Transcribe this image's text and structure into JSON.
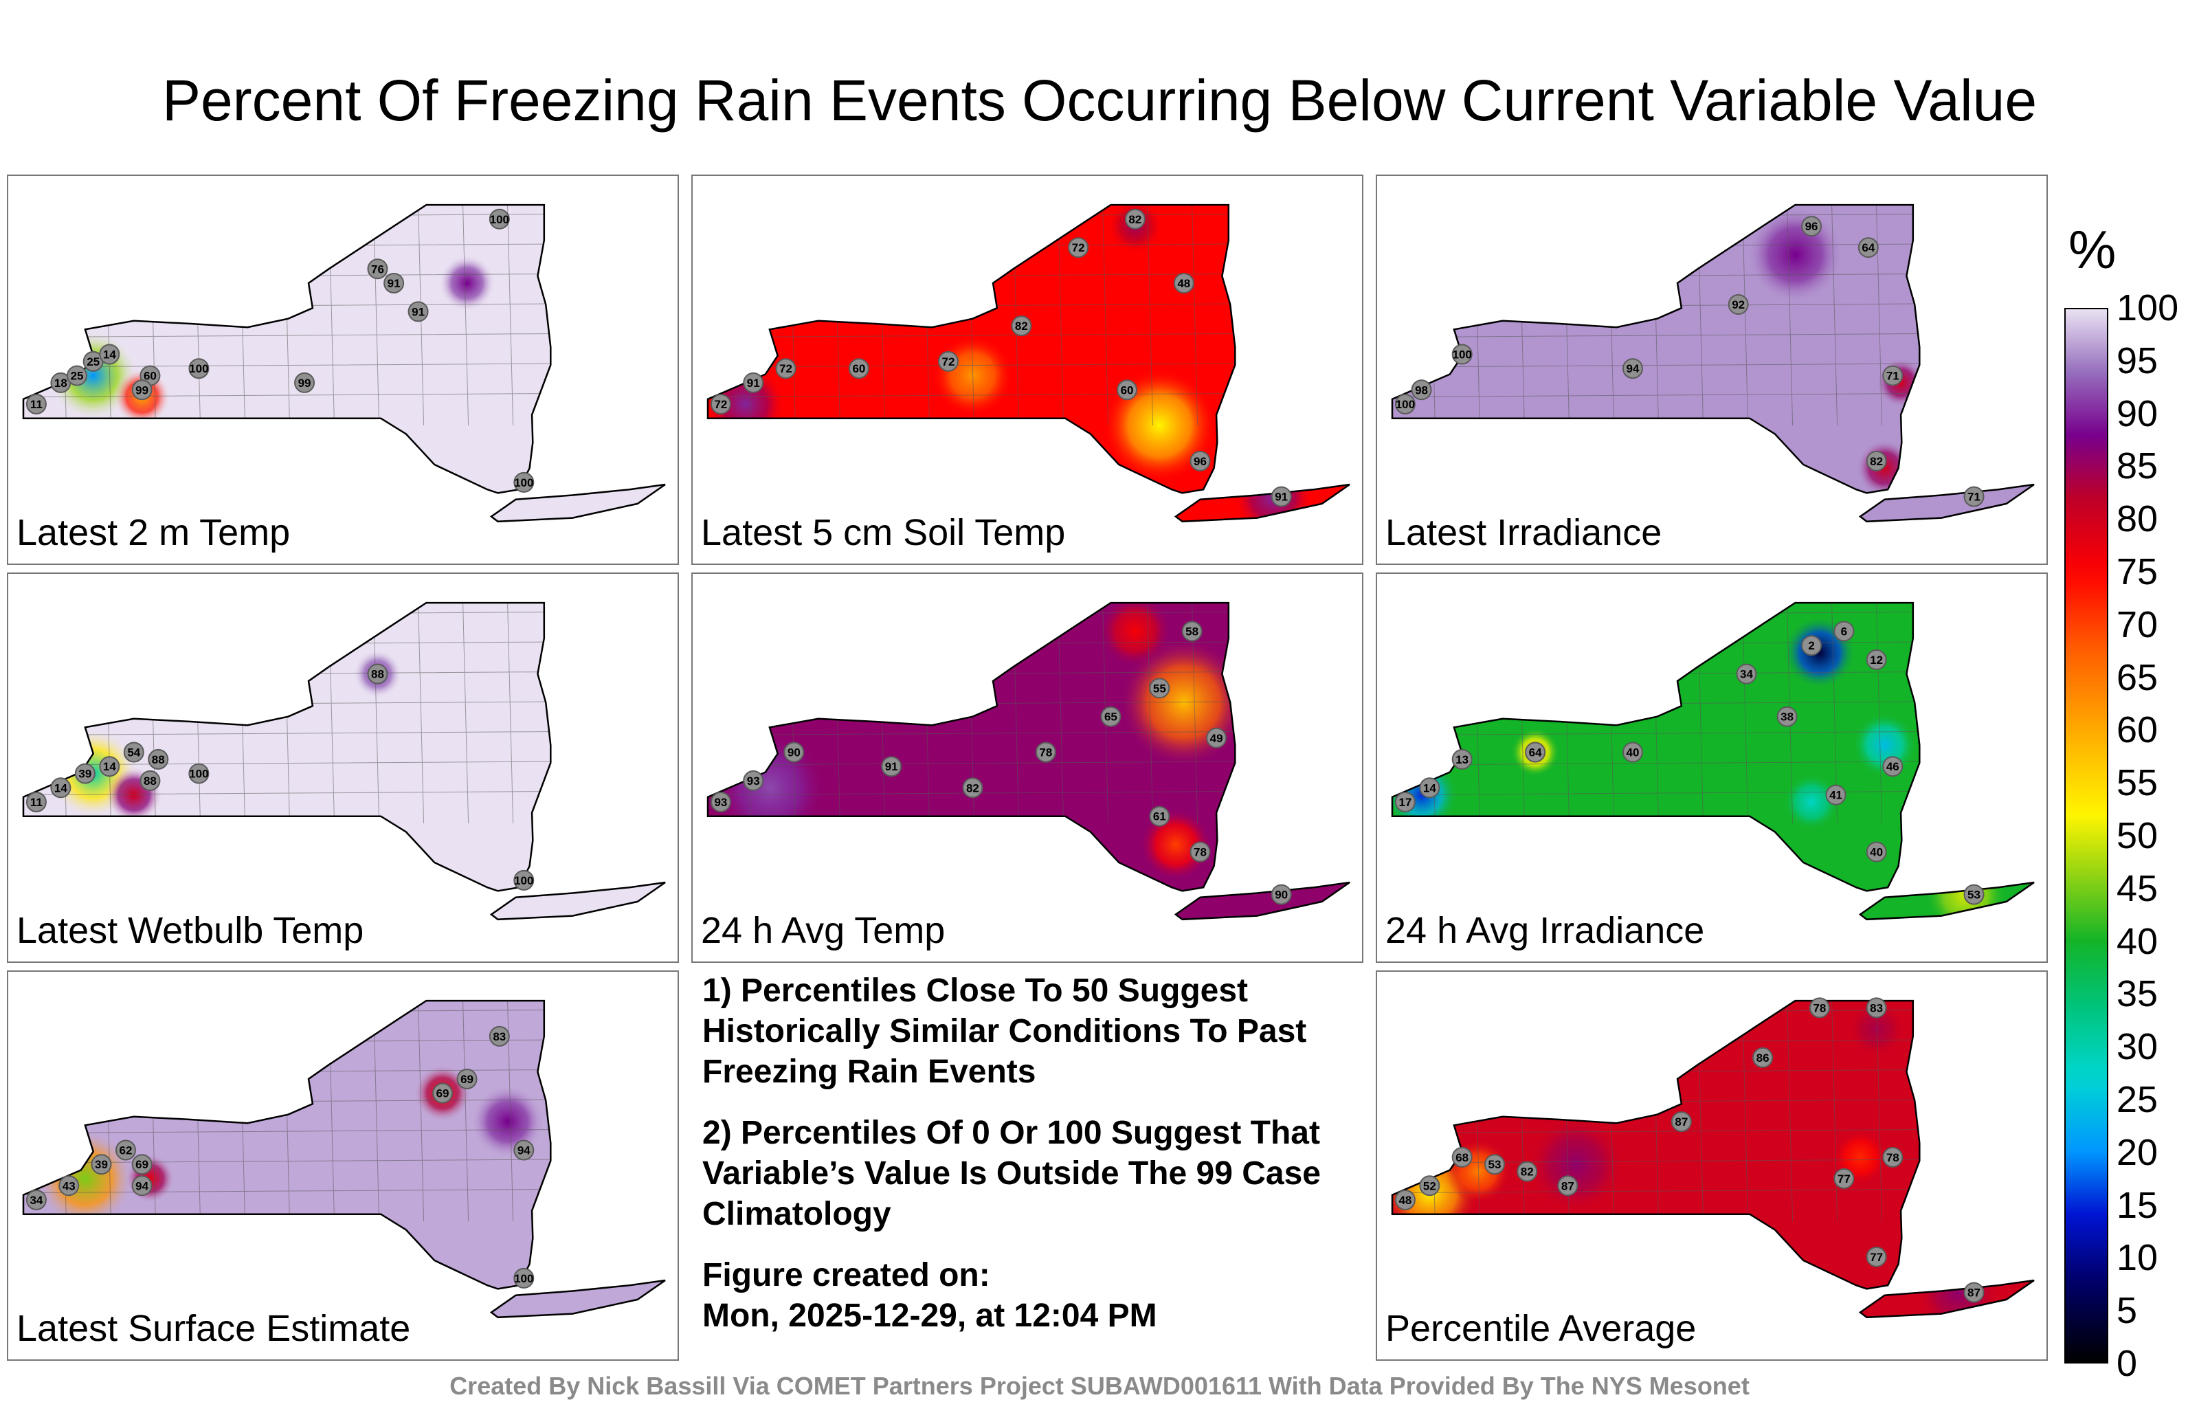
{
  "title": "Percent Of Freezing Rain Events Occurring Below Current Variable Value",
  "footer": "Created By Nick Bassill Via COMET Partners Project SUBAWD001611 With Data Provided By The NYS Mesonet",
  "notes": {
    "line1": "1) Percentiles Close To 50 Suggest Historically Similar Conditions To Past Freezing Rain Events",
    "line2": "2) Percentiles Of 0 Or 100 Suggest That Variable’s Value Is Outside The 99 Case Climatology",
    "created_label": "Figure created on:",
    "created_value": "Mon, 2025-12-29, at 12:04 PM"
  },
  "colorbar": {
    "unit": "%",
    "ticks": [
      "100",
      "95",
      "90",
      "85",
      "80",
      "75",
      "70",
      "65",
      "60",
      "55",
      "50",
      "45",
      "40",
      "35",
      "30",
      "25",
      "20",
      "15",
      "10",
      "5",
      "0"
    ]
  },
  "chart_data": [
    {
      "type": "heatmap",
      "title": "Latest 2 m Temp",
      "base": 100,
      "blobs": [
        {
          "lon": -78.9,
          "lat": 42.6,
          "value": 20,
          "spread": 0.55
        },
        {
          "lon": -78.3,
          "lat": 42.3,
          "value": 60,
          "spread": 0.35
        },
        {
          "lon": -74.3,
          "lat": 43.9,
          "value": 88,
          "spread": 0.35
        }
      ],
      "stations": [
        [
          -79.6,
          42.2,
          "11"
        ],
        [
          -79.3,
          42.5,
          "18"
        ],
        [
          -78.9,
          42.8,
          "25"
        ],
        [
          -79.1,
          42.6,
          "25"
        ],
        [
          -78.7,
          42.9,
          "14"
        ],
        [
          -78.2,
          42.6,
          "60"
        ],
        [
          -78.3,
          42.4,
          "99"
        ],
        [
          -77.6,
          42.7,
          "100"
        ],
        [
          -75.4,
          44.1,
          "76"
        ],
        [
          -75.2,
          43.9,
          "91"
        ],
        [
          -73.9,
          44.8,
          "100"
        ],
        [
          -74.9,
          43.5,
          "91"
        ],
        [
          -76.3,
          42.5,
          "99"
        ],
        [
          -73.6,
          41.1,
          "100"
        ]
      ]
    },
    {
      "type": "heatmap",
      "title": "Latest 5 cm Soil Temp",
      "base": 75,
      "blobs": [
        {
          "lon": -79.3,
          "lat": 42.2,
          "value": 90,
          "spread": 0.5
        },
        {
          "lon": -74.2,
          "lat": 41.9,
          "value": 52,
          "spread": 0.7
        },
        {
          "lon": -76.5,
          "lat": 42.6,
          "value": 62,
          "spread": 0.5
        },
        {
          "lon": -74.5,
          "lat": 44.7,
          "value": 85,
          "spread": 0.35
        },
        {
          "lon": -72.8,
          "lat": 40.9,
          "value": 90,
          "spread": 0.5
        }
      ],
      "stations": [
        [
          -79.6,
          42.2,
          "72"
        ],
        [
          -79.2,
          42.5,
          "91"
        ],
        [
          -78.8,
          42.7,
          "72"
        ],
        [
          -77.9,
          42.7,
          "60"
        ],
        [
          -76.8,
          42.8,
          "72"
        ],
        [
          -75.9,
          43.3,
          "82"
        ],
        [
          -75.2,
          44.4,
          "72"
        ],
        [
          -74.5,
          44.8,
          "82"
        ],
        [
          -73.9,
          43.9,
          "48"
        ],
        [
          -74.6,
          42.4,
          "60"
        ],
        [
          -73.7,
          41.4,
          "96"
        ],
        [
          -72.7,
          40.9,
          "91"
        ]
      ]
    },
    {
      "type": "heatmap",
      "title": "Latest Irradiance",
      "base": 96,
      "blobs": [
        {
          "lon": -74.8,
          "lat": 44.3,
          "value": 88,
          "spread": 0.6
        },
        {
          "lon": -73.5,
          "lat": 42.5,
          "value": 80,
          "spread": 0.3
        },
        {
          "lon": -73.7,
          "lat": 41.3,
          "value": 80,
          "spread": 0.35
        }
      ],
      "stations": [
        [
          -79.6,
          42.2,
          "100"
        ],
        [
          -79.4,
          42.4,
          "98"
        ],
        [
          -78.9,
          42.9,
          "100"
        ],
        [
          -76.8,
          42.7,
          "94"
        ],
        [
          -75.5,
          43.6,
          "92"
        ],
        [
          -74.6,
          44.7,
          "96"
        ],
        [
          -73.9,
          44.4,
          "64"
        ],
        [
          -73.6,
          42.6,
          "71"
        ],
        [
          -73.8,
          41.4,
          "82"
        ],
        [
          -72.6,
          40.9,
          "71"
        ]
      ]
    },
    {
      "type": "heatmap",
      "title": "Latest Wetbulb Temp",
      "base": 100,
      "blobs": [
        {
          "lon": -78.9,
          "lat": 42.6,
          "value": 30,
          "spread": 0.55
        },
        {
          "lon": -78.4,
          "lat": 42.3,
          "value": 80,
          "spread": 0.35
        },
        {
          "lon": -75.4,
          "lat": 44.0,
          "value": 90,
          "spread": 0.3
        }
      ],
      "stations": [
        [
          -79.6,
          42.2,
          "11"
        ],
        [
          -79.3,
          42.4,
          "14"
        ],
        [
          -79.0,
          42.6,
          "39"
        ],
        [
          -78.7,
          42.7,
          "14"
        ],
        [
          -78.4,
          42.9,
          "54"
        ],
        [
          -78.1,
          42.8,
          "88"
        ],
        [
          -78.2,
          42.5,
          "88"
        ],
        [
          -75.4,
          44.0,
          "88"
        ],
        [
          -77.6,
          42.6,
          "100"
        ],
        [
          -73.6,
          41.1,
          "100"
        ]
      ]
    },
    {
      "type": "heatmap",
      "title": "24 h Avg Temp",
      "base": 86,
      "blobs": [
        {
          "lon": -73.9,
          "lat": 43.6,
          "value": 58,
          "spread": 0.8
        },
        {
          "lon": -74.5,
          "lat": 44.6,
          "value": 76,
          "spread": 0.45
        },
        {
          "lon": -79.0,
          "lat": 42.4,
          "value": 92,
          "spread": 0.7
        },
        {
          "lon": -74.0,
          "lat": 41.6,
          "value": 70,
          "spread": 0.45
        }
      ],
      "stations": [
        [
          -79.6,
          42.2,
          "93"
        ],
        [
          -79.2,
          42.5,
          "93"
        ],
        [
          -78.7,
          42.9,
          "90"
        ],
        [
          -77.5,
          42.7,
          "91"
        ],
        [
          -76.5,
          42.4,
          "82"
        ],
        [
          -75.6,
          42.9,
          "78"
        ],
        [
          -74.8,
          43.4,
          "65"
        ],
        [
          -74.2,
          43.8,
          "55"
        ],
        [
          -73.8,
          44.6,
          "58"
        ],
        [
          -73.5,
          43.1,
          "49"
        ],
        [
          -74.2,
          42.0,
          "61"
        ],
        [
          -73.7,
          41.5,
          "78"
        ],
        [
          -72.7,
          40.9,
          "90"
        ]
      ]
    },
    {
      "type": "heatmap",
      "title": "24 h Avg Irradiance",
      "base": 40,
      "blobs": [
        {
          "lon": -74.5,
          "lat": 44.3,
          "value": 4,
          "spread": 0.45
        },
        {
          "lon": -73.7,
          "lat": 43.0,
          "value": 24,
          "spread": 0.4
        },
        {
          "lon": -74.6,
          "lat": 42.2,
          "value": 28,
          "spread": 0.35
        },
        {
          "lon": -79.4,
          "lat": 42.3,
          "value": 15,
          "spread": 0.45
        },
        {
          "lon": -78.0,
          "lat": 42.9,
          "value": 58,
          "spread": 0.3
        },
        {
          "lon": -72.7,
          "lat": 40.9,
          "value": 50,
          "spread": 0.5
        }
      ],
      "stations": [
        [
          -79.6,
          42.2,
          "17"
        ],
        [
          -79.3,
          42.4,
          "14"
        ],
        [
          -78.9,
          42.8,
          "13"
        ],
        [
          -78.0,
          42.9,
          "64"
        ],
        [
          -76.8,
          42.9,
          "40"
        ],
        [
          -75.4,
          44.0,
          "34"
        ],
        [
          -74.6,
          44.4,
          "2"
        ],
        [
          -74.2,
          44.6,
          "6"
        ],
        [
          -73.8,
          44.2,
          "12"
        ],
        [
          -74.9,
          43.4,
          "38"
        ],
        [
          -74.3,
          42.3,
          "41"
        ],
        [
          -73.6,
          42.7,
          "46"
        ],
        [
          -73.8,
          41.5,
          "40"
        ],
        [
          -72.6,
          40.9,
          "53"
        ]
      ]
    },
    {
      "type": "heatmap",
      "title": "Latest Surface Estimate",
      "base": 97,
      "blobs": [
        {
          "lon": -79.0,
          "lat": 42.5,
          "value": 45,
          "spread": 0.6
        },
        {
          "lon": -78.2,
          "lat": 42.5,
          "value": 78,
          "spread": 0.3
        },
        {
          "lon": -74.6,
          "lat": 43.7,
          "value": 76,
          "spread": 0.35
        },
        {
          "lon": -73.8,
          "lat": 43.3,
          "value": 88,
          "spread": 0.45
        }
      ],
      "stations": [
        [
          -79.6,
          42.2,
          "34"
        ],
        [
          -79.2,
          42.4,
          "43"
        ],
        [
          -78.8,
          42.7,
          "39"
        ],
        [
          -78.5,
          42.9,
          "62"
        ],
        [
          -78.3,
          42.7,
          "69"
        ],
        [
          -78.3,
          42.4,
          "94"
        ],
        [
          -74.6,
          43.7,
          "69"
        ],
        [
          -74.3,
          43.9,
          "69"
        ],
        [
          -73.9,
          44.5,
          "83"
        ],
        [
          -73.6,
          42.9,
          "94"
        ],
        [
          -73.6,
          41.1,
          "100"
        ]
      ]
    },
    {
      "type": "heatmap",
      "title": "Percentile Average",
      "base": 80,
      "blobs": [
        {
          "lon": -79.3,
          "lat": 42.3,
          "value": 52,
          "spread": 0.6
        },
        {
          "lon": -78.7,
          "lat": 42.6,
          "value": 64,
          "spread": 0.4
        },
        {
          "lon": -77.5,
          "lat": 42.7,
          "value": 86,
          "spread": 0.6
        },
        {
          "lon": -74.0,
          "lat": 42.8,
          "value": 72,
          "spread": 0.35
        },
        {
          "lon": -73.8,
          "lat": 44.6,
          "value": 84,
          "spread": 0.35
        },
        {
          "lon": -72.8,
          "lat": 40.9,
          "value": 86,
          "spread": 0.5
        }
      ],
      "stations": [
        [
          -79.6,
          42.2,
          "48"
        ],
        [
          -79.3,
          42.4,
          "52"
        ],
        [
          -78.9,
          42.8,
          "68"
        ],
        [
          -78.5,
          42.7,
          "53"
        ],
        [
          -78.1,
          42.6,
          "82"
        ],
        [
          -77.6,
          42.4,
          "87"
        ],
        [
          -76.2,
          43.3,
          "87"
        ],
        [
          -75.2,
          44.2,
          "86"
        ],
        [
          -74.5,
          44.9,
          "78"
        ],
        [
          -73.8,
          44.9,
          "83"
        ],
        [
          -74.2,
          42.5,
          "77"
        ],
        [
          -73.6,
          42.8,
          "78"
        ],
        [
          -73.8,
          41.4,
          "77"
        ],
        [
          -72.6,
          40.9,
          "87"
        ]
      ]
    }
  ]
}
